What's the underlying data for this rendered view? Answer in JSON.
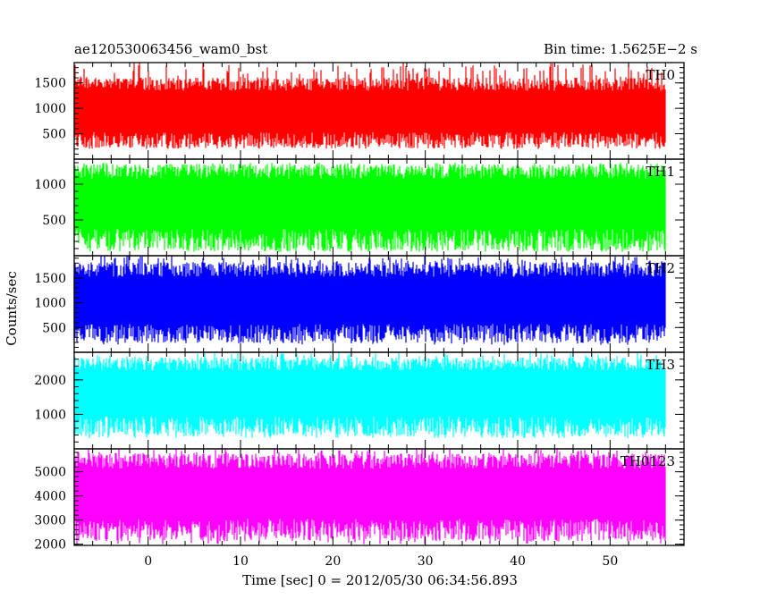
{
  "header": {
    "title": "ae120530063456_wam0_bst",
    "bin_time": "Bin time: 1.5625E−2 s"
  },
  "chart_data": {
    "type": "line",
    "x_label": "Time [sec] 0 = 2012/05/30 06:34:56.893",
    "y_label": "Counts/sec",
    "xlim": [
      -8,
      58
    ],
    "x_ticks": [
      0,
      10,
      20,
      30,
      40,
      50
    ],
    "x_tick_labels": [
      "0",
      "10",
      "20",
      "30",
      "40",
      "50"
    ],
    "data_x_range": [
      -8,
      56
    ],
    "panels": [
      {
        "name": "TH0",
        "color": "#ff0000",
        "ylim": [
          0,
          1900
        ],
        "yticks": [
          500,
          1000,
          1500
        ],
        "band": {
          "mean": 850,
          "low": 300,
          "high": 1500,
          "spike_max": 1900,
          "dip_min": 200
        }
      },
      {
        "name": "TH1",
        "color": "#00ff00",
        "ylim": [
          0,
          1350
        ],
        "yticks": [
          500,
          1000
        ],
        "band": {
          "mean": 680,
          "low": 150,
          "high": 1200,
          "spike_max": 1300,
          "dip_min": 50
        }
      },
      {
        "name": "TH2",
        "color": "#0000ff",
        "ylim": [
          0,
          1950
        ],
        "yticks": [
          500,
          1000,
          1500
        ],
        "band": {
          "mean": 950,
          "low": 300,
          "high": 1700,
          "spike_max": 1950,
          "dip_min": 150
        }
      },
      {
        "name": "TH3",
        "color": "#00ffff",
        "ylim": [
          0,
          2800
        ],
        "yticks": [
          1000,
          2000
        ],
        "band": {
          "mean": 1550,
          "low": 500,
          "high": 2500,
          "spike_max": 2800,
          "dip_min": 350
        }
      },
      {
        "name": "TH0123",
        "color": "#ff00ff",
        "ylim": [
          1950,
          5950
        ],
        "yticks": [
          2000,
          3000,
          4000,
          5000
        ],
        "band": {
          "mean": 3950,
          "low": 2400,
          "high": 5500,
          "spike_max": 5950,
          "dip_min": 2000
        }
      }
    ]
  }
}
